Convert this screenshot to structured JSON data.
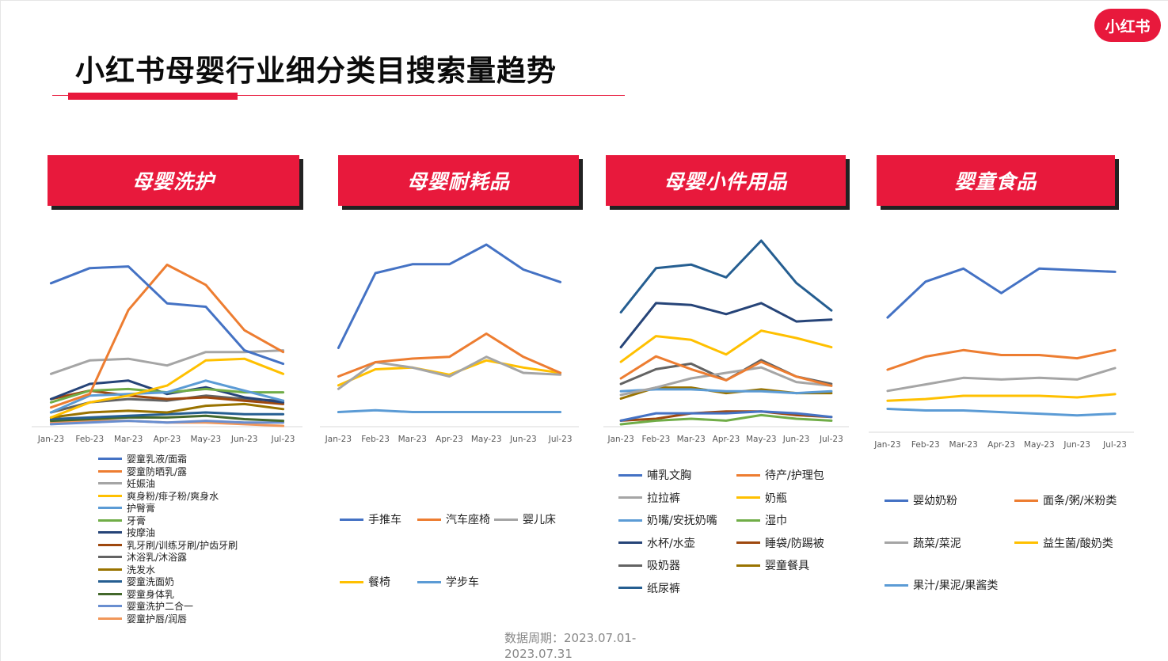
{
  "page": {
    "title": "小红书母婴行业细分类目搜索量趋势",
    "logo_text": "小红书",
    "footer": "数据周期：2023.07.01-2023.07.31",
    "brand_color": "#e8193c"
  },
  "chart_data": [
    {
      "type": "line",
      "title": "母婴洗护",
      "categories": [
        "Jan-23",
        "Feb-23",
        "Mar-23",
        "Apr-23",
        "May-23",
        "Jun-23",
        "Jul-23"
      ],
      "ylim": [
        0,
        100
      ],
      "series": [
        {
          "name": "婴童乳液/面霜",
          "color": "#4472c4",
          "values": [
            85,
            94,
            95,
            73,
            71,
            45,
            37
          ]
        },
        {
          "name": "婴童防晒乳/露",
          "color": "#ed7d31",
          "values": [
            11,
            19,
            69,
            96,
            84,
            57,
            44
          ]
        },
        {
          "name": "妊娠油",
          "color": "#a5a5a5",
          "values": [
            31,
            39,
            40,
            36,
            44,
            44,
            45
          ]
        },
        {
          "name": "爽身粉/痱子粉/爽身水",
          "color": "#ffc000",
          "values": [
            5,
            14,
            18,
            24,
            39,
            40,
            31
          ]
        },
        {
          "name": "护臀膏",
          "color": "#5b9bd5",
          "values": [
            8,
            18,
            19,
            20,
            27,
            21,
            15
          ]
        },
        {
          "name": "牙膏",
          "color": "#70ad47",
          "values": [
            14,
            21,
            22,
            20,
            22,
            20,
            20
          ]
        },
        {
          "name": "按摩油",
          "color": "#264478",
          "values": [
            16,
            25,
            27,
            19,
            23,
            17,
            14
          ]
        },
        {
          "name": "乳牙刷/训练牙刷/护齿牙刷",
          "color": "#9e480e",
          "values": [
            16,
            21,
            18,
            16,
            17,
            15,
            13
          ]
        },
        {
          "name": "沐浴乳/沐浴露",
          "color": "#636363",
          "values": [
            8,
            14,
            16,
            15,
            18,
            16,
            15
          ]
        },
        {
          "name": "洗发水",
          "color": "#997300",
          "values": [
            5,
            8,
            9,
            8,
            12,
            13,
            10
          ]
        },
        {
          "name": "婴童洗面奶",
          "color": "#255e91",
          "values": [
            4,
            5,
            6,
            7,
            8,
            7,
            7
          ]
        },
        {
          "name": "婴童身体乳",
          "color": "#43682b",
          "values": [
            3,
            4,
            5,
            5,
            6,
            4,
            3
          ]
        },
        {
          "name": "婴童洗护二合一",
          "color": "#698ed0",
          "values": [
            1,
            2,
            3,
            2,
            3,
            2,
            2
          ]
        },
        {
          "name": "婴童护唇/润唇",
          "color": "#f1975a",
          "values": [
            2,
            3,
            3,
            2,
            2,
            1,
            0
          ]
        }
      ]
    },
    {
      "type": "line",
      "title": "母婴耐耗品",
      "categories": [
        "Jan-23",
        "Feb-23",
        "Mar-23",
        "Apr-23",
        "May-23",
        "Jun-23",
        "Jul-23"
      ],
      "ylim": [
        0,
        100
      ],
      "series": [
        {
          "name": "手推车",
          "color": "#4472c4",
          "values": [
            42,
            84,
            89,
            89,
            100,
            86,
            79
          ]
        },
        {
          "name": "汽车座椅",
          "color": "#ed7d31",
          "values": [
            26,
            34,
            36,
            37,
            50,
            37,
            28
          ]
        },
        {
          "name": "婴儿床",
          "color": "#a5a5a5",
          "values": [
            19,
            34,
            31,
            26,
            37,
            28,
            27
          ]
        },
        {
          "name": "餐椅",
          "color": "#ffc000",
          "values": [
            21,
            30,
            31,
            27,
            35,
            31,
            28
          ]
        },
        {
          "name": "学步车",
          "color": "#5b9bd5",
          "values": [
            6,
            7,
            6,
            6,
            6,
            6,
            6
          ]
        }
      ]
    },
    {
      "type": "line",
      "title": "母婴小件用品",
      "categories": [
        "Jan-23",
        "Feb-23",
        "Mar-23",
        "Apr-23",
        "May-23",
        "Jun-23",
        "Jul-23"
      ],
      "ylim": [
        0,
        100
      ],
      "series": [
        {
          "name": "哺乳文胸",
          "color": "#4472c4",
          "values": [
            2,
            6,
            6,
            6,
            7,
            6,
            4
          ]
        },
        {
          "name": "待产/护理包",
          "color": "#ed7d31",
          "values": [
            25,
            37,
            30,
            24,
            34,
            26,
            21
          ]
        },
        {
          "name": "拉拉裤",
          "color": "#a5a5a5",
          "values": [
            16,
            20,
            25,
            28,
            31,
            23,
            21
          ]
        },
        {
          "name": "奶瓶",
          "color": "#ffc000",
          "values": [
            34,
            48,
            46,
            38,
            51,
            47,
            42
          ]
        },
        {
          "name": "奶嘴/安抚奶嘴",
          "color": "#5b9bd5",
          "values": [
            18,
            19,
            19,
            18,
            18,
            17,
            18
          ]
        },
        {
          "name": "湿巾",
          "color": "#70ad47",
          "values": [
            0,
            2,
            3,
            2,
            5,
            3,
            2
          ]
        },
        {
          "name": "水杯/水壶",
          "color": "#264478",
          "values": [
            42,
            66,
            65,
            60,
            66,
            56,
            57
          ]
        },
        {
          "name": "睡袋/防踢被",
          "color": "#9e480e",
          "values": [
            2,
            3,
            6,
            7,
            7,
            5,
            4
          ]
        },
        {
          "name": "吸奶器",
          "color": "#636363",
          "values": [
            22,
            30,
            33,
            24,
            35,
            26,
            22
          ]
        },
        {
          "name": "婴童餐具",
          "color": "#997300",
          "values": [
            14,
            20,
            20,
            17,
            19,
            17,
            17
          ]
        },
        {
          "name": "纸尿裤",
          "color": "#255e91",
          "values": [
            61,
            85,
            87,
            80,
            100,
            77,
            62
          ]
        }
      ]
    },
    {
      "type": "line",
      "title": "婴童食品",
      "categories": [
        "Jan-23",
        "Feb-23",
        "Mar-23",
        "Apr-23",
        "May-23",
        "Jun-23",
        "Jul-23"
      ],
      "ylim": [
        0,
        100
      ],
      "series": [
        {
          "name": "婴幼奶粉",
          "color": "#4472c4",
          "values": [
            65,
            87,
            95,
            80,
            95,
            94,
            93
          ]
        },
        {
          "name": "面条/粥/米粉类",
          "color": "#ed7d31",
          "values": [
            33,
            41,
            45,
            42,
            42,
            40,
            45
          ]
        },
        {
          "name": "蔬菜/菜泥",
          "color": "#a5a5a5",
          "values": [
            20,
            24,
            28,
            27,
            28,
            27,
            34
          ]
        },
        {
          "name": "益生菌/酸奶类",
          "color": "#ffc000",
          "values": [
            14,
            15,
            17,
            17,
            17,
            16,
            18
          ]
        },
        {
          "name": "果汁/果泥/果酱类",
          "color": "#5b9bd5",
          "values": [
            9,
            8,
            8,
            7,
            6,
            5,
            6
          ]
        }
      ]
    }
  ]
}
